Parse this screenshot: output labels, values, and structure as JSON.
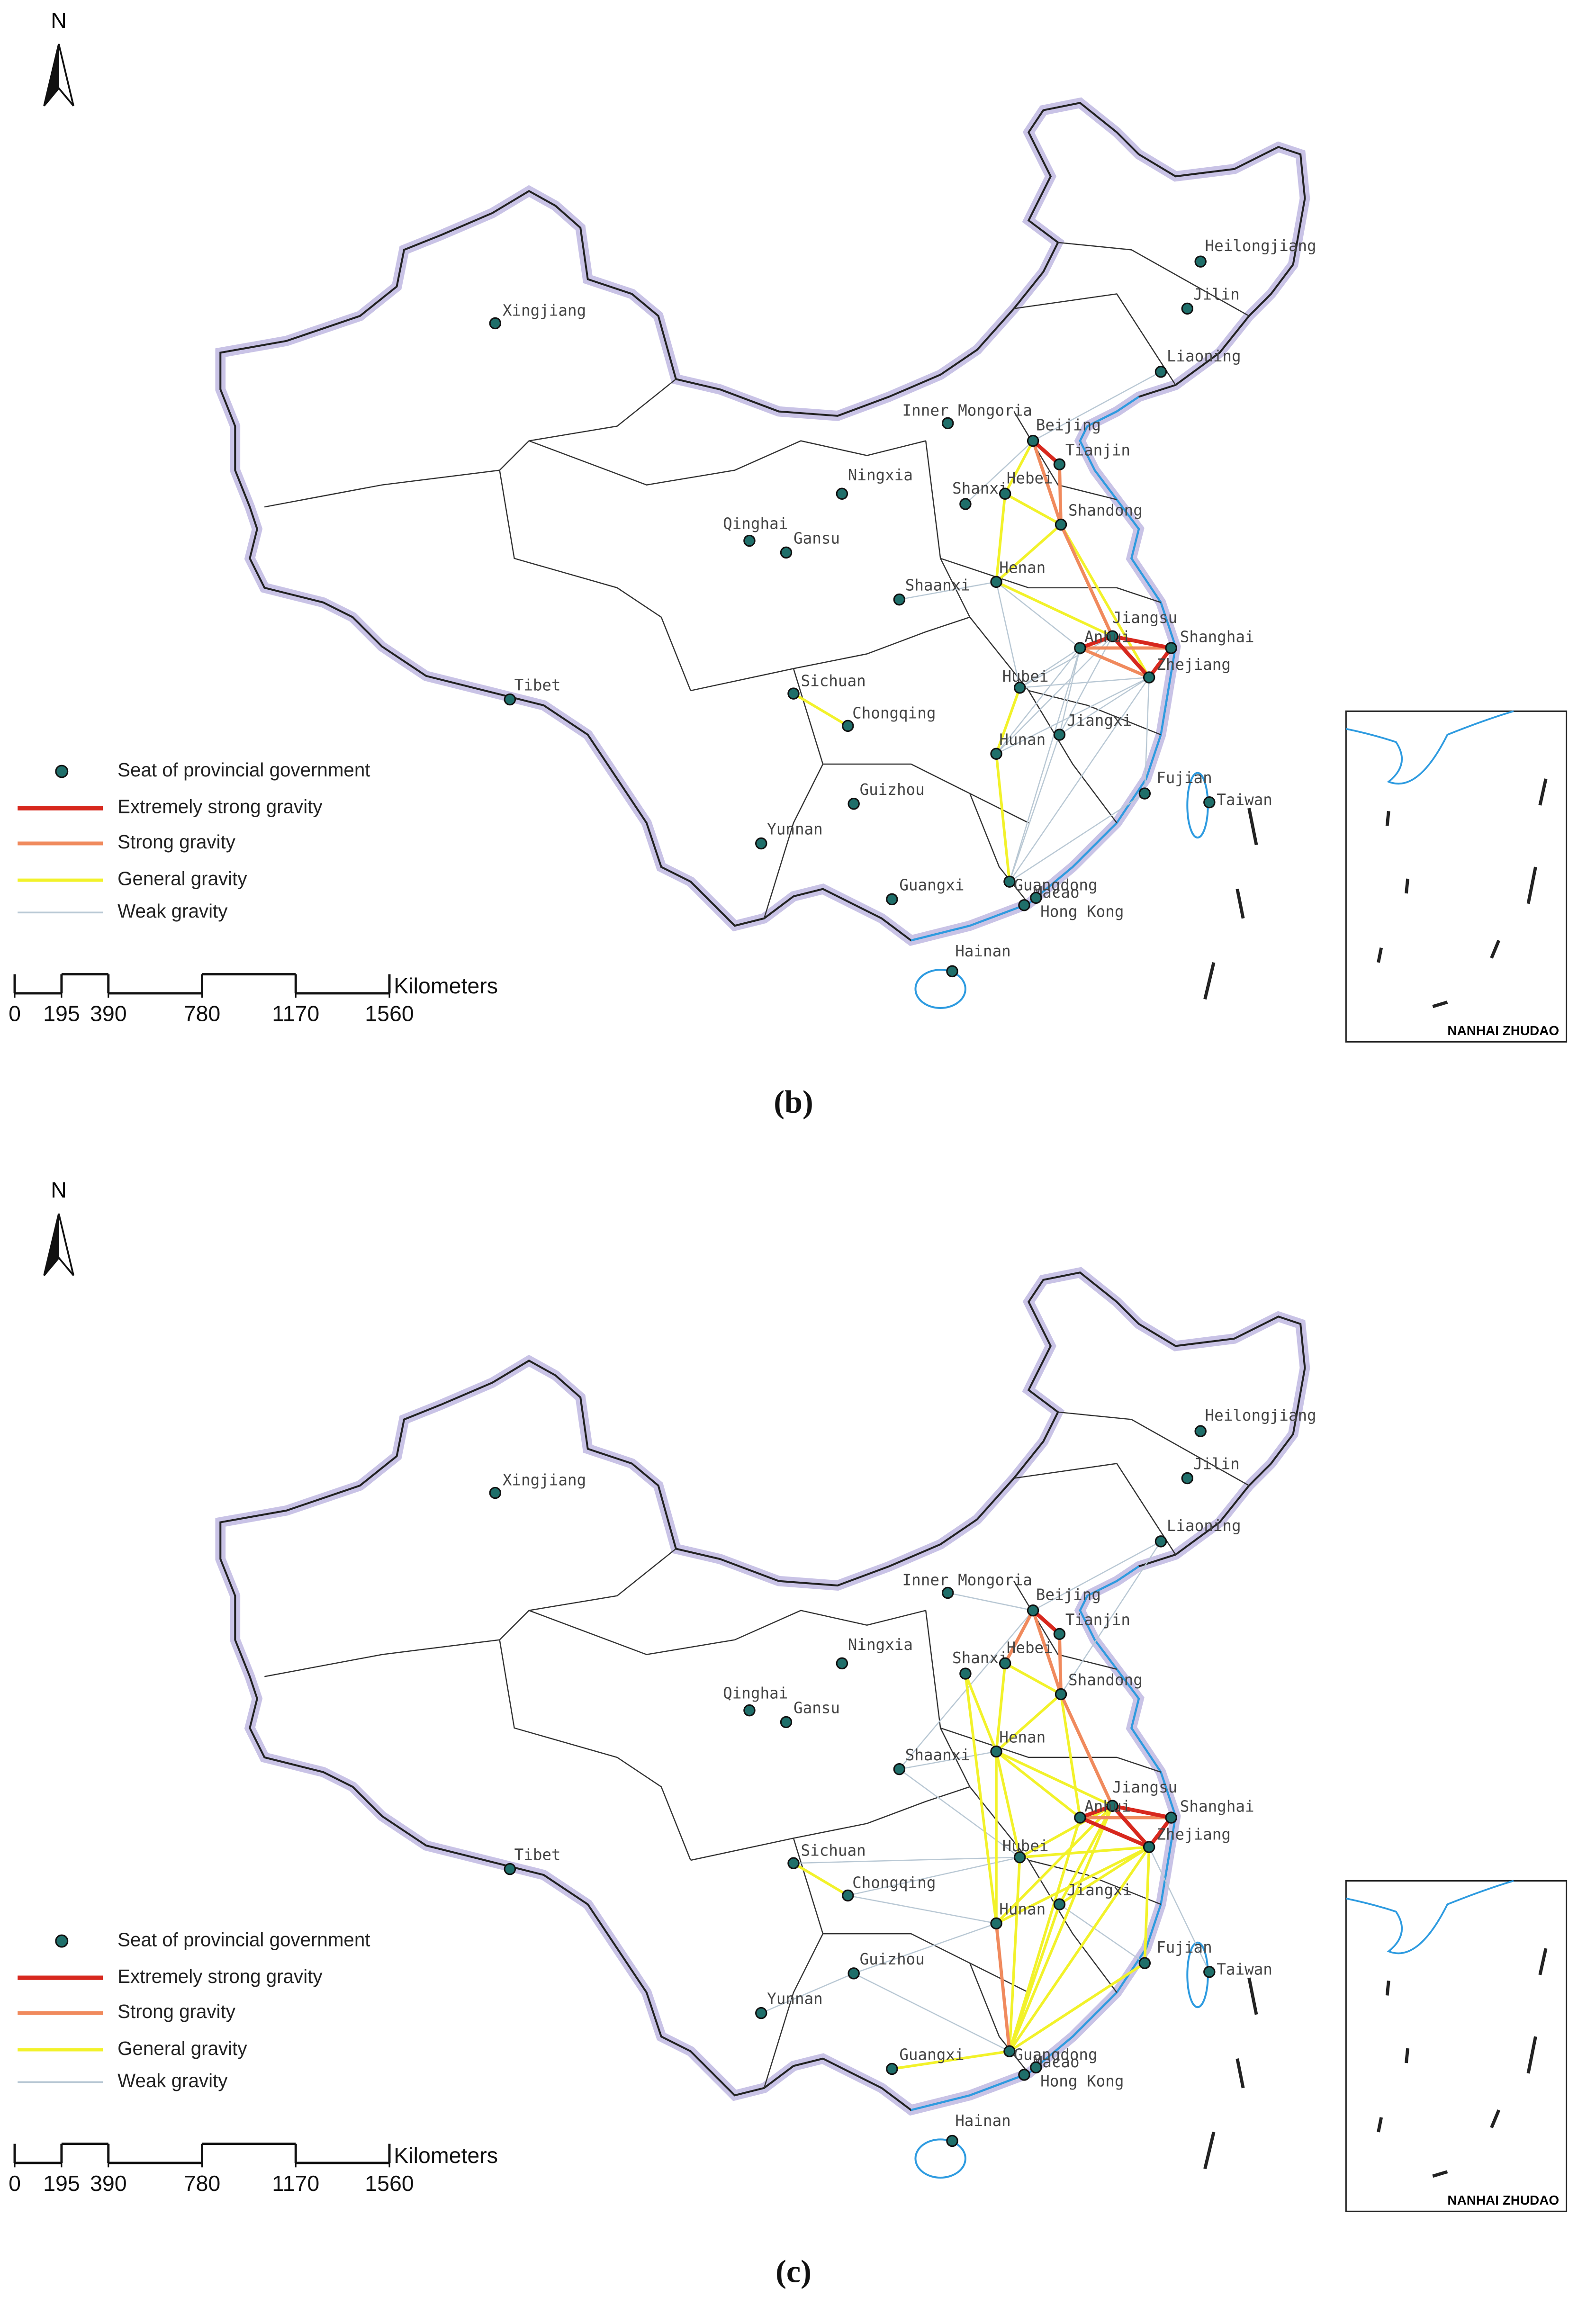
{
  "panels": [
    {
      "caption": "(b)",
      "north": "N",
      "provinces": [
        "Xingjiang",
        "Tibet",
        "Qinghai",
        "Gansu",
        "Ningxia",
        "Inner Mongoria",
        "Shanxi",
        "Hebei",
        "Beijing",
        "Tianjin",
        "Shandong",
        "Henan",
        "Shaanxi",
        "Jiangsu",
        "Anhui",
        "Shanghai",
        "Zhejiang",
        "Hubei",
        "Sichuan",
        "Chongqing",
        "Jiangxi",
        "Hunan",
        "Guizhou",
        "Fujian",
        "Taiwan",
        "Yunnan",
        "Guangdong",
        "Guangxi",
        "Macao",
        "Hong Kong",
        "Hainan",
        "Heilongjiang",
        "Jilin",
        "Liaoning"
      ],
      "legend": [
        {
          "name": "Seat of provincial government",
          "color": "#1f6f6a"
        },
        {
          "name": "Extremely strong gravity",
          "color": "#d7281e"
        },
        {
          "name": "Strong gravity",
          "color": "#f08a5d"
        },
        {
          "name": "General gravity",
          "color": "#f2f22a"
        },
        {
          "name": "Weak gravity",
          "color": "#b9c8d4"
        }
      ],
      "scale_bar": {
        "ticks": [
          0,
          195,
          390,
          780,
          1170,
          1560
        ],
        "unit": "Kilometers"
      },
      "inset": {
        "label": "NANHAI ZHUDAO"
      }
    },
    {
      "caption": "(c)",
      "north": "N",
      "provinces": [
        "Xingjiang",
        "Tibet",
        "Qinghai",
        "Gansu",
        "Ningxia",
        "Inner Mongoria",
        "Shanxi",
        "Hebei",
        "Beijing",
        "Tianjin",
        "Shandong",
        "Henan",
        "Shaanxi",
        "Jiangsu",
        "Anhui",
        "Shanghai",
        "Zhejiang",
        "Hubei",
        "Sichuan",
        "Chongqing",
        "Jiangxi",
        "Hunan",
        "Guizhou",
        "Fujian",
        "Taiwan",
        "Yunnan",
        "Guangdong",
        "Guangxi",
        "Macao",
        "Hong Kong",
        "Hainan",
        "Heilongjiang",
        "Jilin",
        "Liaoning"
      ],
      "legend": [
        {
          "name": "Seat of provincial government",
          "color": "#1f6f6a"
        },
        {
          "name": "Extremely strong gravity",
          "color": "#d7281e"
        },
        {
          "name": "Strong gravity",
          "color": "#f08a5d"
        },
        {
          "name": "General gravity",
          "color": "#f2f22a"
        },
        {
          "name": "Weak gravity",
          "color": "#b9c8d4"
        }
      ],
      "scale_bar": {
        "ticks": [
          0,
          195,
          390,
          780,
          1170,
          1560
        ],
        "unit": "Kilometers"
      },
      "inset": {
        "label": "NANHAI ZHUDAO"
      }
    }
  ]
}
